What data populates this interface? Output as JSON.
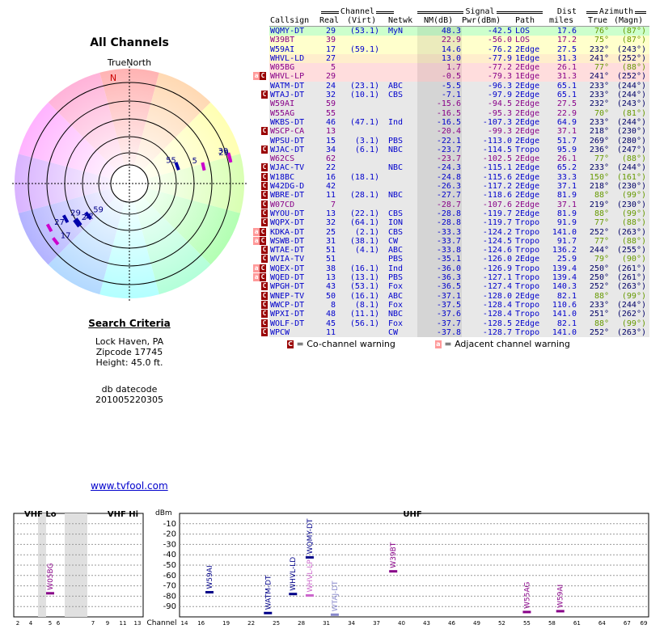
{
  "page": {
    "title": "All Channels",
    "true_north": "TrueNorth",
    "search_criteria_title": "Search Criteria",
    "location": "Lock Haven, PA",
    "zipcode": "Zipcode 17745",
    "height": "Height: 45.0 ft.",
    "db_datecode_label": "db datecode",
    "db_datecode": "201005220305",
    "link": "www.tvfool.com"
  },
  "table": {
    "group_headers": {
      "channel": "Channel",
      "signal": "Signal",
      "dist": "Dist",
      "azimuth": "Azimuth"
    },
    "headers": [
      "Callsign",
      "Real",
      "(Virt)",
      "Netwk",
      "NM(dB)",
      "Pwr(dBm)",
      "Path",
      "miles",
      "True",
      "(Magn)"
    ],
    "rows": [
      {
        "flags": "",
        "callsign": "WQMY-DT",
        "real": "29",
        "virt": "(53.1)",
        "netwk": "MyN",
        "nm": "48.3",
        "pwr": "-42.5",
        "path": "LOS",
        "dist": "17.6",
        "true_az": "76°",
        "magn": "(87°)",
        "color": "#0000cc",
        "az_color": "#669900",
        "bg": "#ccffcc"
      },
      {
        "flags": "",
        "callsign": "W39BT",
        "real": "39",
        "virt": "",
        "netwk": "",
        "nm": "22.9",
        "pwr": "-56.0",
        "path": "LOS",
        "dist": "17.2",
        "true_az": "75°",
        "magn": "(87°)",
        "color": "#880088",
        "az_color": "#669900",
        "bg": "#ffffcc"
      },
      {
        "flags": "",
        "callsign": "W59AI",
        "real": "17",
        "virt": "(59.1)",
        "netwk": "",
        "nm": "14.6",
        "pwr": "-76.2",
        "path": "2Edge",
        "dist": "27.5",
        "true_az": "232°",
        "magn": "(243°)",
        "color": "#0000cc",
        "az_color": "#000066",
        "bg": "#ffffcc"
      },
      {
        "flags": "",
        "callsign": "WHVL-LD",
        "real": "27",
        "virt": "",
        "netwk": "",
        "nm": "13.0",
        "pwr": "-77.9",
        "path": "1Edge",
        "dist": "31.3",
        "true_az": "241°",
        "magn": "(252°)",
        "color": "#0000cc",
        "az_color": "#000066",
        "bg": "#ffeecc"
      },
      {
        "flags": "",
        "callsign": "W05BG",
        "real": "5",
        "virt": "",
        "netwk": "",
        "nm": "1.7",
        "pwr": "-77.2",
        "path": "2Edge",
        "dist": "26.1",
        "true_az": "77°",
        "magn": "(88°)",
        "color": "#880088",
        "az_color": "#669900",
        "bg": "#ffdddd"
      },
      {
        "flags": "ac",
        "callsign": "WHVL-LP",
        "real": "29",
        "virt": "",
        "netwk": "",
        "nm": "-0.5",
        "pwr": "-79.3",
        "path": "1Edge",
        "dist": "31.3",
        "true_az": "241°",
        "magn": "(252°)",
        "color": "#880088",
        "az_color": "#000066",
        "bg": "#ffdddd"
      },
      {
        "flags": "",
        "callsign": "WATM-DT",
        "real": "24",
        "virt": "(23.1)",
        "netwk": "ABC",
        "nm": "-5.5",
        "pwr": "-96.3",
        "path": "2Edge",
        "dist": "65.1",
        "true_az": "233°",
        "magn": "(244°)",
        "color": "#0000cc",
        "az_color": "#000066",
        "bg": "#e8e8e8"
      },
      {
        "flags": "c",
        "callsign": "WTAJ-DT",
        "real": "32",
        "virt": "(10.1)",
        "netwk": "CBS",
        "nm": "-7.1",
        "pwr": "-97.9",
        "path": "2Edge",
        "dist": "65.1",
        "true_az": "233°",
        "magn": "(244°)",
        "color": "#0000cc",
        "az_color": "#000066",
        "bg": "#e8e8e8"
      },
      {
        "flags": "",
        "callsign": "W59AI",
        "real": "59",
        "virt": "",
        "netwk": "",
        "nm": "-15.6",
        "pwr": "-94.5",
        "path": "2Edge",
        "dist": "27.5",
        "true_az": "232°",
        "magn": "(243°)",
        "color": "#880088",
        "az_color": "#000066",
        "bg": "#e8e8e8"
      },
      {
        "flags": "",
        "callsign": "W55AG",
        "real": "55",
        "virt": "",
        "netwk": "",
        "nm": "-16.5",
        "pwr": "-95.3",
        "path": "2Edge",
        "dist": "22.9",
        "true_az": "70°",
        "magn": "(81°)",
        "color": "#880088",
        "az_color": "#669900",
        "bg": "#e8e8e8"
      },
      {
        "flags": "",
        "callsign": "WKBS-DT",
        "real": "46",
        "virt": "(47.1)",
        "netwk": "Ind",
        "nm": "-16.5",
        "pwr": "-107.3",
        "path": "2Edge",
        "dist": "64.9",
        "true_az": "233°",
        "magn": "(244°)",
        "color": "#0000cc",
        "az_color": "#000066",
        "bg": "#e8e8e8"
      },
      {
        "flags": "c",
        "callsign": "WSCP-CA",
        "real": "13",
        "virt": "",
        "netwk": "",
        "nm": "-20.4",
        "pwr": "-99.3",
        "path": "2Edge",
        "dist": "37.1",
        "true_az": "218°",
        "magn": "(230°)",
        "color": "#880088",
        "az_color": "#000066",
        "bg": "#e8e8e8"
      },
      {
        "flags": "",
        "callsign": "WPSU-DT",
        "real": "15",
        "virt": "(3.1)",
        "netwk": "PBS",
        "nm": "-22.1",
        "pwr": "-113.0",
        "path": "2Edge",
        "dist": "51.7",
        "true_az": "269°",
        "magn": "(280°)",
        "color": "#0000cc",
        "az_color": "#000066",
        "bg": "#e8e8e8"
      },
      {
        "flags": "c",
        "callsign": "WJAC-DT",
        "real": "34",
        "virt": "(6.1)",
        "netwk": "NBC",
        "nm": "-23.7",
        "pwr": "-114.5",
        "path": "Tropo",
        "dist": "95.9",
        "true_az": "236°",
        "magn": "(247°)",
        "color": "#0000cc",
        "az_color": "#000066",
        "bg": "#e8e8e8"
      },
      {
        "flags": "",
        "callsign": "W62CS",
        "real": "62",
        "virt": "",
        "netwk": "",
        "nm": "-23.7",
        "pwr": "-102.5",
        "path": "2Edge",
        "dist": "26.1",
        "true_az": "77°",
        "magn": "(88°)",
        "color": "#880088",
        "az_color": "#669900",
        "bg": "#e8e8e8"
      },
      {
        "flags": "c",
        "callsign": "WJAC-TV",
        "real": "22",
        "virt": "",
        "netwk": "NBC",
        "nm": "-24.3",
        "pwr": "-115.1",
        "path": "2Edge",
        "dist": "65.2",
        "true_az": "233°",
        "magn": "(244°)",
        "color": "#0000cc",
        "az_color": "#000066",
        "bg": "#e8e8e8"
      },
      {
        "flags": "c",
        "callsign": "W18BC",
        "real": "16",
        "virt": "(18.1)",
        "netwk": "",
        "nm": "-24.8",
        "pwr": "-115.6",
        "path": "2Edge",
        "dist": "33.3",
        "true_az": "150°",
        "magn": "(161°)",
        "color": "#0000cc",
        "az_color": "#669900",
        "bg": "#e8e8e8"
      },
      {
        "flags": "c",
        "callsign": "W42DG-D",
        "real": "42",
        "virt": "",
        "netwk": "",
        "nm": "-26.3",
        "pwr": "-117.2",
        "path": "2Edge",
        "dist": "37.1",
        "true_az": "218°",
        "magn": "(230°)",
        "color": "#0000cc",
        "az_color": "#000066",
        "bg": "#e8e8e8"
      },
      {
        "flags": "c",
        "callsign": "WBRE-DT",
        "real": "11",
        "virt": "(28.1)",
        "netwk": "NBC",
        "nm": "-27.7",
        "pwr": "-118.6",
        "path": "2Edge",
        "dist": "81.9",
        "true_az": "88°",
        "magn": "(99°)",
        "color": "#0000cc",
        "az_color": "#669900",
        "bg": "#e8e8e8"
      },
      {
        "flags": "c",
        "callsign": "W07CD",
        "real": "7",
        "virt": "",
        "netwk": "",
        "nm": "-28.7",
        "pwr": "-107.6",
        "path": "2Edge",
        "dist": "37.1",
        "true_az": "219°",
        "magn": "(230°)",
        "color": "#880088",
        "az_color": "#000066",
        "bg": "#e8e8e8"
      },
      {
        "flags": "c",
        "callsign": "WYOU-DT",
        "real": "13",
        "virt": "(22.1)",
        "netwk": "CBS",
        "nm": "-28.8",
        "pwr": "-119.7",
        "path": "2Edge",
        "dist": "81.9",
        "true_az": "88°",
        "magn": "(99°)",
        "color": "#0000cc",
        "az_color": "#669900",
        "bg": "#e8e8e8"
      },
      {
        "flags": "c",
        "callsign": "WQPX-DT",
        "real": "32",
        "virt": "(64.1)",
        "netwk": "ION",
        "nm": "-28.8",
        "pwr": "-119.7",
        "path": "Tropo",
        "dist": "91.9",
        "true_az": "77°",
        "magn": "(88°)",
        "color": "#0000cc",
        "az_color": "#669900",
        "bg": "#e8e8e8"
      },
      {
        "flags": "ac",
        "callsign": "KDKA-DT",
        "real": "25",
        "virt": "(2.1)",
        "netwk": "CBS",
        "nm": "-33.3",
        "pwr": "-124.2",
        "path": "Tropo",
        "dist": "141.0",
        "true_az": "252°",
        "magn": "(263°)",
        "color": "#0000cc",
        "az_color": "#000066",
        "bg": "#e8e8e8"
      },
      {
        "flags": "ac",
        "callsign": "WSWB-DT",
        "real": "31",
        "virt": "(38.1)",
        "netwk": "CW",
        "nm": "-33.7",
        "pwr": "-124.5",
        "path": "Tropo",
        "dist": "91.7",
        "true_az": "77°",
        "magn": "(88°)",
        "color": "#0000cc",
        "az_color": "#669900",
        "bg": "#e8e8e8"
      },
      {
        "flags": "c",
        "callsign": "WTAE-DT",
        "real": "51",
        "virt": "(4.1)",
        "netwk": "ABC",
        "nm": "-33.8",
        "pwr": "-124.6",
        "path": "Tropo",
        "dist": "136.2",
        "true_az": "244°",
        "magn": "(255°)",
        "color": "#0000cc",
        "az_color": "#000066",
        "bg": "#e8e8e8"
      },
      {
        "flags": "c",
        "callsign": "WVIA-TV",
        "real": "51",
        "virt": "",
        "netwk": "PBS",
        "nm": "-35.1",
        "pwr": "-126.0",
        "path": "2Edge",
        "dist": "25.9",
        "true_az": "79°",
        "magn": "(90°)",
        "color": "#0000cc",
        "az_color": "#669900",
        "bg": "#e8e8e8"
      },
      {
        "flags": "ac",
        "callsign": "WQEX-DT",
        "real": "38",
        "virt": "(16.1)",
        "netwk": "Ind",
        "nm": "-36.0",
        "pwr": "-126.9",
        "path": "Tropo",
        "dist": "139.4",
        "true_az": "250°",
        "magn": "(261°)",
        "color": "#0000cc",
        "az_color": "#000066",
        "bg": "#e8e8e8"
      },
      {
        "flags": "ac",
        "callsign": "WQED-DT",
        "real": "13",
        "virt": "(13.1)",
        "netwk": "PBS",
        "nm": "-36.3",
        "pwr": "-127.1",
        "path": "Tropo",
        "dist": "139.4",
        "true_az": "250°",
        "magn": "(261°)",
        "color": "#0000cc",
        "az_color": "#000066",
        "bg": "#e8e8e8"
      },
      {
        "flags": "c",
        "callsign": "WPGH-DT",
        "real": "43",
        "virt": "(53.1)",
        "netwk": "Fox",
        "nm": "-36.5",
        "pwr": "-127.4",
        "path": "Tropo",
        "dist": "140.3",
        "true_az": "252°",
        "magn": "(263°)",
        "color": "#0000cc",
        "az_color": "#000066",
        "bg": "#e8e8e8"
      },
      {
        "flags": "c",
        "callsign": "WNEP-TV",
        "real": "50",
        "virt": "(16.1)",
        "netwk": "ABC",
        "nm": "-37.1",
        "pwr": "-128.0",
        "path": "2Edge",
        "dist": "82.1",
        "true_az": "88°",
        "magn": "(99°)",
        "color": "#0000cc",
        "az_color": "#669900",
        "bg": "#e8e8e8"
      },
      {
        "flags": "c",
        "callsign": "WWCP-DT",
        "real": "8",
        "virt": "(8.1)",
        "netwk": "Fox",
        "nm": "-37.5",
        "pwr": "-128.4",
        "path": "Tropo",
        "dist": "110.6",
        "true_az": "233°",
        "magn": "(244°)",
        "color": "#0000cc",
        "az_color": "#000066",
        "bg": "#e8e8e8"
      },
      {
        "flags": "c",
        "callsign": "WPXI-DT",
        "real": "48",
        "virt": "(11.1)",
        "netwk": "NBC",
        "nm": "-37.6",
        "pwr": "-128.4",
        "path": "Tropo",
        "dist": "141.0",
        "true_az": "251°",
        "magn": "(262°)",
        "color": "#0000cc",
        "az_color": "#000066",
        "bg": "#e8e8e8"
      },
      {
        "flags": "c",
        "callsign": "WOLF-DT",
        "real": "45",
        "virt": "(56.1)",
        "netwk": "Fox",
        "nm": "-37.7",
        "pwr": "-128.5",
        "path": "2Edge",
        "dist": "82.1",
        "true_az": "88°",
        "magn": "(99°)",
        "color": "#0000cc",
        "az_color": "#669900",
        "bg": "#e8e8e8"
      },
      {
        "flags": "c",
        "callsign": "WPCW",
        "real": "11",
        "virt": "",
        "netwk": "CW",
        "nm": "-37.8",
        "pwr": "-128.7",
        "path": "Tropo",
        "dist": "141.0",
        "true_az": "252°",
        "magn": "(263°)",
        "color": "#0000cc",
        "az_color": "#000066",
        "bg": "#e8e8e8"
      }
    ]
  },
  "legend": {
    "cochannel": "= Co-channel warning",
    "adjacent": "= Adjacent channel warning",
    "cochannel_color": "#990000",
    "adjacent_color": "#ff9999",
    "cochannel_glyph": "C",
    "adjacent_glyph": "a"
  },
  "chart_data": [
    {
      "type": "scatter",
      "name": "polar-plot",
      "north_label": "N",
      "marks": [
        {
          "label": "55",
          "azimuth": 70,
          "nm": -16.5
        },
        {
          "label": "5",
          "azimuth": 77,
          "nm": 1.7
        },
        {
          "label": "39",
          "azimuth": 75,
          "nm": 22.9
        },
        {
          "label": "29",
          "azimuth": 76,
          "nm": 48.3
        },
        {
          "label": "29",
          "azimuth": 241,
          "nm": -0.5
        },
        {
          "label": "27",
          "azimuth": 241,
          "nm": 13.0
        },
        {
          "label": "17",
          "azimuth": 232,
          "nm": 14.6
        },
        {
          "label": "24",
          "azimuth": 233,
          "nm": -5.5
        },
        {
          "label": "32",
          "azimuth": 233,
          "nm": -7.1
        },
        {
          "label": "59",
          "azimuth": 232,
          "nm": -15.6
        }
      ]
    },
    {
      "type": "bar",
      "name": "spectrum",
      "section_labels": [
        "VHF Lo",
        "VHF Hi",
        "UHF"
      ],
      "ylabel": "dBm",
      "xlabel": "Channel",
      "y_ticks": [
        -10,
        -20,
        -30,
        -40,
        -50,
        -60,
        -70,
        -80,
        -90
      ],
      "ylim": [
        -100,
        0
      ],
      "vhf_lo_ticks": [
        2,
        4,
        5,
        6
      ],
      "vhf_hi_ticks": [
        7,
        9,
        11,
        13
      ],
      "uhf_ticks": [
        14,
        16,
        19,
        22,
        25,
        28,
        31,
        34,
        37,
        40,
        43,
        46,
        49,
        52,
        55,
        58,
        61,
        64,
        67,
        69
      ],
      "points": [
        {
          "callsign": "W05BG",
          "channel": 5,
          "dbm": -77.2,
          "color": "#880088"
        },
        {
          "callsign": "W59AI",
          "channel": 17,
          "dbm": -76.2,
          "color": "#000088"
        },
        {
          "callsign": "WATM-DT",
          "channel": 24,
          "dbm": -96.3,
          "color": "#000088"
        },
        {
          "callsign": "WHVL-LD",
          "channel": 27,
          "dbm": -77.9,
          "color": "#000088"
        },
        {
          "callsign": "WHVL-LP",
          "channel": 29,
          "dbm": -79.3,
          "color": "#cc66cc"
        },
        {
          "callsign": "WQMY-DT",
          "channel": 29,
          "dbm": -42.5,
          "color": "#000088"
        },
        {
          "callsign": "WTAJ-DT",
          "channel": 32,
          "dbm": -97.9,
          "color": "#8888cc"
        },
        {
          "callsign": "W39BT",
          "channel": 39,
          "dbm": -56.0,
          "color": "#880088"
        },
        {
          "callsign": "W55AG",
          "channel": 55,
          "dbm": -95.3,
          "color": "#880088"
        },
        {
          "callsign": "W59AI",
          "channel": 59,
          "dbm": -94.5,
          "color": "#880088"
        }
      ]
    }
  ]
}
